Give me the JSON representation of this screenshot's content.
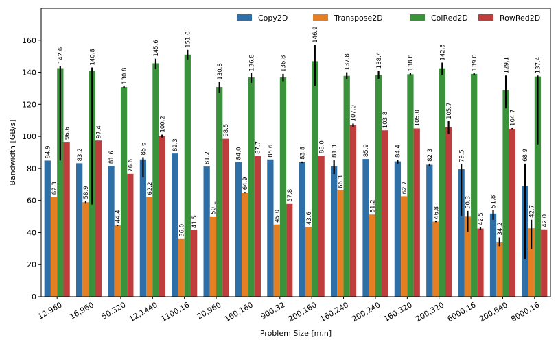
{
  "chart_data": {
    "type": "bar",
    "xlabel": "Problem Size [m,n]",
    "ylabel": "Bandwidth [GB/s]",
    "ylim": [
      0,
      180
    ],
    "yticks": [
      0,
      20,
      40,
      60,
      80,
      100,
      120,
      140,
      160
    ],
    "legend_position": "top-right",
    "categories": [
      "12,960",
      "16,960",
      "50,320",
      "12,1440",
      "1100,16",
      "20,960",
      "160,160",
      "900,32",
      "200,160",
      "160,240",
      "200,240",
      "160,320",
      "200,320",
      "6000,16",
      "200,640",
      "8000,16"
    ],
    "series": [
      {
        "name": "Copy2D",
        "color": "#2f6fa7",
        "values": [
          84.9,
          83.2,
          81.6,
          85.6,
          89.3,
          81.2,
          84.0,
          85.6,
          83.8,
          81.3,
          85.9,
          84.4,
          82.3,
          79.5,
          51.8,
          68.9
        ],
        "labels": [
          "84.9",
          "83.2",
          "81.6",
          "85.6",
          "89.3",
          "81.2",
          "84.0",
          "85.6",
          "83.8",
          "81.3",
          "85.9",
          "84.4",
          "82.3",
          "79.5",
          "51.8",
          "68.9"
        ],
        "err": [
          [
            84.9,
            84.9
          ],
          [
            83.2,
            83.2
          ],
          [
            81.6,
            81.6
          ],
          [
            74.5,
            87.0
          ],
          [
            89.3,
            89.3
          ],
          [
            81.2,
            81.2
          ],
          [
            84.0,
            84.0
          ],
          [
            85.6,
            85.6
          ],
          [
            83.3,
            84.3
          ],
          [
            76.5,
            85.5
          ],
          [
            85.9,
            85.9
          ],
          [
            83.0,
            85.5
          ],
          [
            81.5,
            83.0
          ],
          [
            50.5,
            82.5
          ],
          [
            48.0,
            54.0
          ],
          [
            23.5,
            83.0
          ]
        ]
      },
      {
        "name": "Transpose2D",
        "color": "#e57f24",
        "values": [
          62.3,
          58.9,
          44.4,
          62.2,
          36.0,
          50.1,
          64.9,
          45.0,
          43.6,
          66.3,
          51.2,
          62.7,
          46.8,
          50.3,
          34.2,
          42.7
        ],
        "labels": [
          "62.3",
          "58.9",
          "44.4",
          "62.2",
          "36.0",
          "50.1",
          "64.9",
          "45.0",
          "43.6",
          "66.3",
          "51.2",
          "62.7",
          "46.8",
          "50.3",
          "34.2",
          "42.7"
        ],
        "err": [
          [
            62.3,
            62.3
          ],
          [
            58.0,
            59.7
          ],
          [
            44.0,
            44.8
          ],
          [
            62.2,
            62.2
          ],
          [
            36.0,
            36.0
          ],
          [
            50.1,
            50.1
          ],
          [
            64.5,
            65.3
          ],
          [
            45.0,
            45.0
          ],
          [
            43.6,
            43.6
          ],
          [
            66.3,
            66.3
          ],
          [
            51.2,
            51.2
          ],
          [
            62.7,
            62.7
          ],
          [
            46.5,
            47.1
          ],
          [
            40.5,
            53.5
          ],
          [
            31.5,
            37.0
          ],
          [
            29.5,
            48.0
          ]
        ]
      },
      {
        "name": "ColRed2D",
        "color": "#3a923a",
        "values": [
          142.6,
          140.8,
          130.8,
          145.6,
          151.0,
          130.8,
          136.8,
          136.8,
          146.9,
          137.8,
          138.4,
          138.8,
          142.5,
          139.0,
          129.1,
          137.4
        ],
        "labels": [
          "142.6",
          "140.8",
          "130.8",
          "145.6",
          "151.0",
          "130.8",
          "136.8",
          "136.8",
          "146.9",
          "137.8",
          "138.4",
          "138.8",
          "142.5",
          "139.0",
          "129.1",
          "137.4"
        ],
        "err": [
          [
            85.0,
            144.0
          ],
          [
            57.5,
            143.0
          ],
          [
            130.3,
            131.3
          ],
          [
            142.0,
            148.5
          ],
          [
            148.0,
            154.0
          ],
          [
            127.0,
            134.0
          ],
          [
            133.5,
            139.5
          ],
          [
            134.5,
            139.0
          ],
          [
            131.5,
            157.0
          ],
          [
            135.5,
            140.0
          ],
          [
            136.0,
            141.0
          ],
          [
            138.0,
            139.5
          ],
          [
            138.5,
            146.0
          ],
          [
            138.5,
            139.5
          ],
          [
            117.5,
            138.0
          ],
          [
            95.0,
            138.0
          ]
        ]
      },
      {
        "name": "RowRed2D",
        "color": "#c03d3e",
        "values": [
          96.6,
          97.4,
          76.6,
          100.2,
          41.5,
          98.5,
          87.7,
          57.8,
          88.0,
          107.0,
          103.8,
          105.0,
          105.7,
          42.5,
          104.7,
          42.0
        ],
        "labels": [
          "96.6",
          "97.4",
          "76.6",
          "100.2",
          "41.5",
          "98.5",
          "87.7",
          "57.8",
          "88.0",
          "107.0",
          "103.8",
          "105.0",
          "105.7",
          "42.5",
          "104.7",
          "42.0"
        ],
        "err": [
          [
            96.6,
            96.6
          ],
          [
            97.4,
            97.4
          ],
          [
            76.6,
            76.6
          ],
          [
            99.3,
            101.1
          ],
          [
            41.5,
            41.5
          ],
          [
            98.5,
            98.5
          ],
          [
            87.7,
            87.7
          ],
          [
            57.8,
            57.8
          ],
          [
            88.0,
            88.0
          ],
          [
            106.0,
            108.0
          ],
          [
            103.8,
            103.8
          ],
          [
            105.0,
            105.0
          ],
          [
            101.5,
            109.5
          ],
          [
            41.8,
            43.2
          ],
          [
            104.2,
            105.2
          ],
          [
            42.0,
            42.0
          ]
        ]
      }
    ]
  }
}
